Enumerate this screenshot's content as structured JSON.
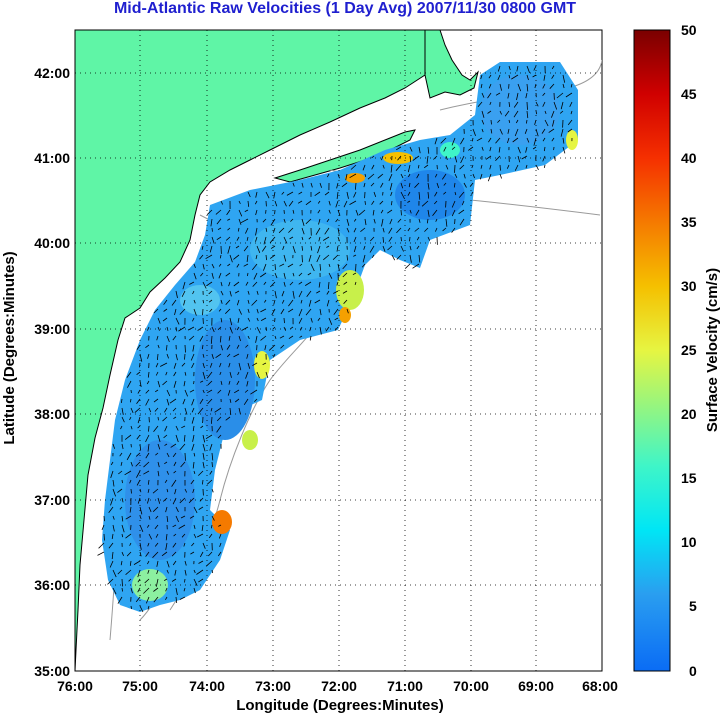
{
  "title": "Mid-Atlantic Raw Velocities (1 Day Avg) 2007/11/30 0800 GMT",
  "x_label": "Longitude (Degrees:Minutes)",
  "y_label": "Latitude (Degrees:Minutes)",
  "colorbar_label": "Surface Velocity (cm/s)",
  "x_ticks": [
    "76:00",
    "75:00",
    "74:00",
    "73:00",
    "72:00",
    "71:00",
    "70:00",
    "69:00",
    "68:00"
  ],
  "y_ticks": [
    "42:00",
    "41:00",
    "40:00",
    "39:00",
    "38:00",
    "37:00",
    "36:00",
    "35:00"
  ],
  "colorbar_ticks": [
    "50",
    "45",
    "40",
    "35",
    "30",
    "25",
    "20",
    "15",
    "10",
    "5",
    "0"
  ],
  "colors": {
    "land": "#5ff5a6",
    "title": "#1f1fcf",
    "coast": "#000000",
    "bathymetry": "#9a9a9a",
    "grid": "#000000"
  },
  "grid": "dotted"
}
